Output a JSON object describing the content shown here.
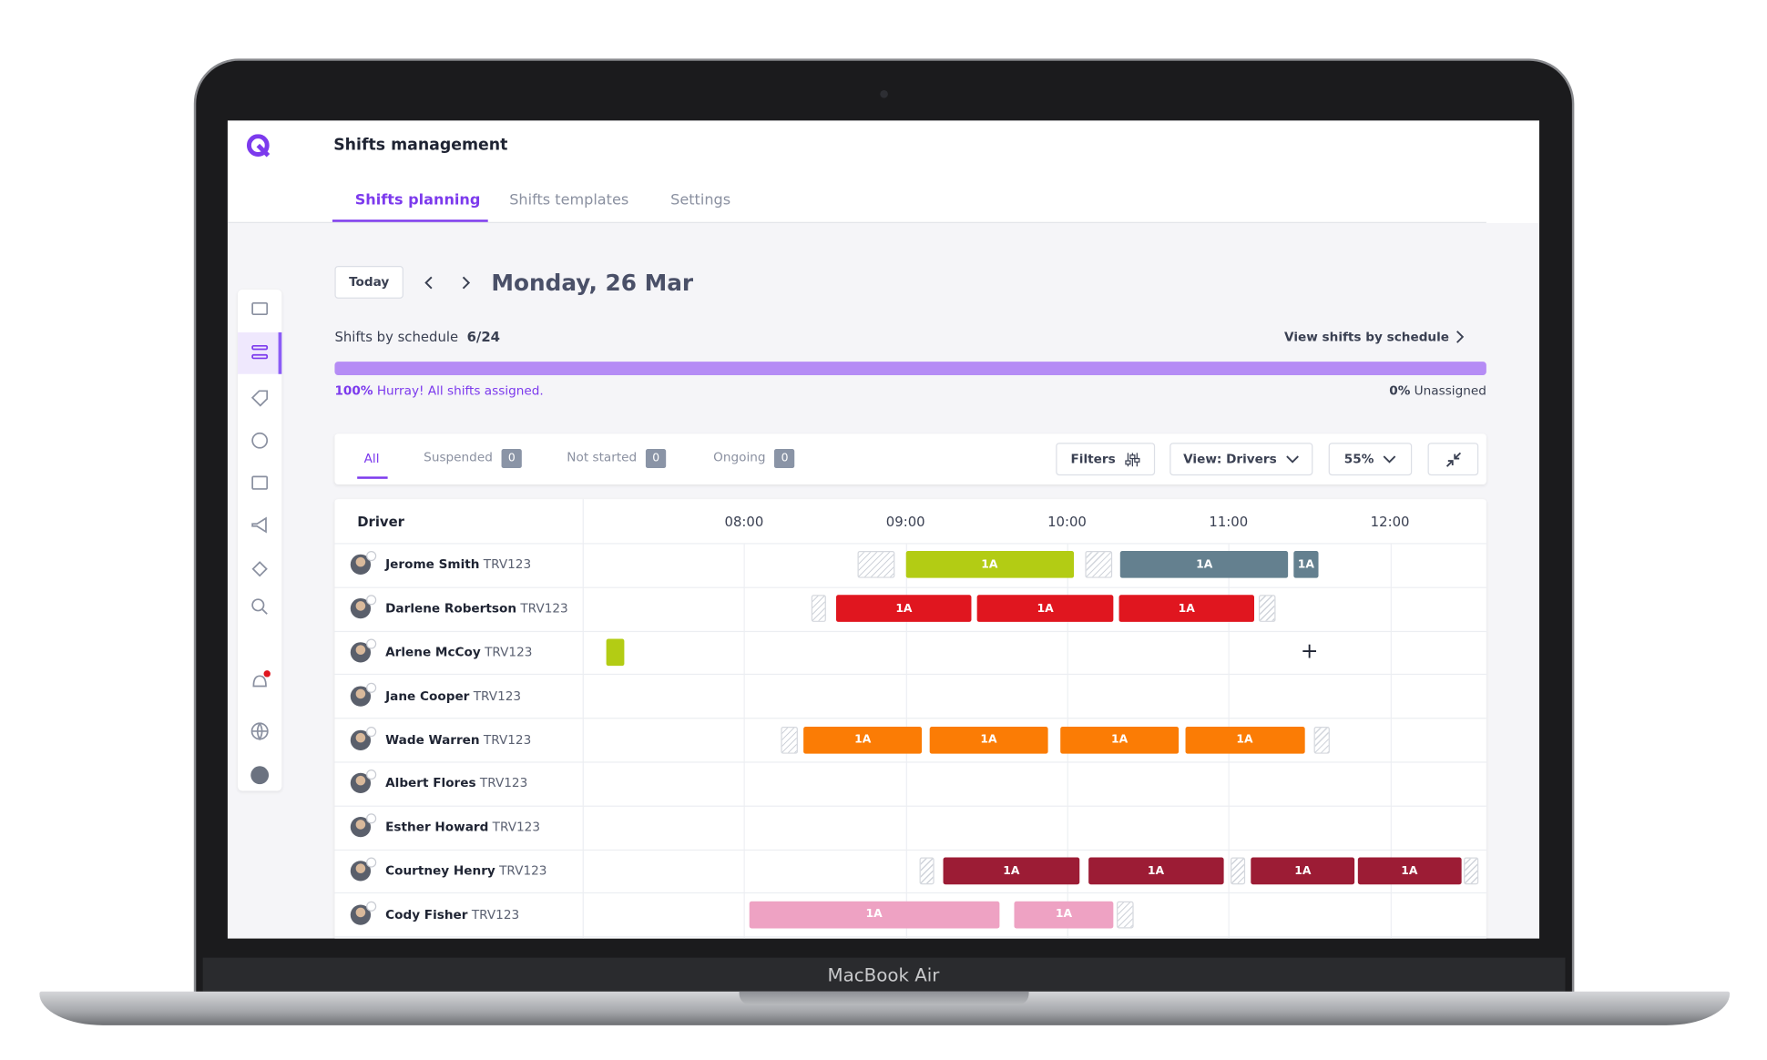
{
  "header": {
    "title": "Shifts management",
    "tabs": [
      "Shifts planning",
      "Shifts templates",
      "Settings"
    ]
  },
  "toolbar": {
    "today": "Today",
    "date": "Monday, 26 Mar"
  },
  "summary": {
    "label": "Shifts by schedule",
    "count": "6/24",
    "link": "View shifts by schedule",
    "assigned_pct": "100%",
    "assigned_text": "Hurray! All shifts assigned.",
    "unassigned_pct": "0%",
    "unassigned_text": "Unassigned"
  },
  "filters": {
    "tabs": [
      {
        "label": "All"
      },
      {
        "label": "Suspended",
        "count": 0
      },
      {
        "label": "Not started",
        "count": 0
      },
      {
        "label": "Ongoing",
        "count": 0
      }
    ],
    "buttons": [
      "Filters",
      "View: Drivers",
      "55%"
    ]
  },
  "grid": {
    "column": "Driver",
    "start": 7,
    "end": 12.6,
    "ticks": [
      {
        "value": 8,
        "label": "08:00"
      },
      {
        "value": 9,
        "label": "09:00"
      },
      {
        "value": 10,
        "label": "10:00"
      },
      {
        "value": 11,
        "label": "11:00"
      },
      {
        "value": 12,
        "label": "12:00"
      }
    ],
    "drivers": [
      {
        "name": "Jerome Smith",
        "code": "TRV123",
        "shifts": [
          {
            "start": 8.7,
            "end": 8.93,
            "break": true
          },
          {
            "start": 9.0,
            "end": 10.04,
            "label": "1A",
            "color": "#b3cc14"
          },
          {
            "start": 10.11,
            "end": 10.28,
            "break": true
          },
          {
            "start": 10.33,
            "end": 11.37,
            "label": "1A",
            "color": "#64808f"
          },
          {
            "start": 11.4,
            "end": 11.56,
            "label": "1A",
            "color": "#64808f"
          }
        ]
      },
      {
        "name": "Darlene Robertson",
        "code": "TRV123",
        "shifts": [
          {
            "start": 8.42,
            "end": 8.51,
            "break": true
          },
          {
            "start": 8.57,
            "end": 9.41,
            "label": "1A",
            "color": "#e0161f"
          },
          {
            "start": 9.44,
            "end": 10.29,
            "label": "1A",
            "color": "#e0161f"
          },
          {
            "start": 10.32,
            "end": 11.16,
            "label": "1A",
            "color": "#e0161f"
          },
          {
            "start": 11.19,
            "end": 11.29,
            "break": true
          }
        ]
      },
      {
        "name": "Arlene McCoy",
        "code": "TRV123",
        "shifts": [
          {
            "start": 7.15,
            "end": 7.26,
            "color": "#b3cc14"
          }
        ]
      },
      {
        "name": "Jane Cooper",
        "code": "TRV123",
        "shifts": []
      },
      {
        "name": "Wade Warren",
        "code": "TRV123",
        "shifts": [
          {
            "start": 8.23,
            "end": 8.33,
            "break": true
          },
          {
            "start": 8.37,
            "end": 9.1,
            "label": "1A",
            "color": "#fb7c05"
          },
          {
            "start": 9.15,
            "end": 9.88,
            "label": "1A",
            "color": "#fb7c05"
          },
          {
            "start": 9.96,
            "end": 10.69,
            "label": "1A",
            "color": "#fb7c05"
          },
          {
            "start": 10.73,
            "end": 11.47,
            "label": "1A",
            "color": "#fb7c05"
          },
          {
            "start": 11.53,
            "end": 11.63,
            "break": true
          }
        ]
      },
      {
        "name": "Albert Flores",
        "code": "TRV123",
        "shifts": []
      },
      {
        "name": "Esther Howard",
        "code": "TRV123",
        "shifts": []
      },
      {
        "name": "Courtney Henry",
        "code": "TRV123",
        "shifts": [
          {
            "start": 9.09,
            "end": 9.18,
            "break": true
          },
          {
            "start": 9.23,
            "end": 10.08,
            "label": "1A",
            "color": "#9c1c35"
          },
          {
            "start": 10.13,
            "end": 10.97,
            "label": "1A",
            "color": "#9c1c35"
          },
          {
            "start": 11.01,
            "end": 11.1,
            "break": true
          },
          {
            "start": 11.14,
            "end": 11.78,
            "label": "1A",
            "color": "#9c1c35"
          },
          {
            "start": 11.8,
            "end": 12.44,
            "label": "1A",
            "color": "#9c1c35"
          },
          {
            "start": 12.46,
            "end": 12.55,
            "break": true
          }
        ]
      },
      {
        "name": "Cody Fisher",
        "code": "TRV123",
        "shifts": [
          {
            "start": 8.03,
            "end": 9.58,
            "label": "1A",
            "color": "#eea2c3"
          },
          {
            "start": 9.67,
            "end": 10.29,
            "label": "1A",
            "color": "#eea2c3"
          },
          {
            "start": 10.31,
            "end": 10.41,
            "break": true
          }
        ]
      }
    ]
  },
  "device": {
    "label": "MacBook Air"
  }
}
